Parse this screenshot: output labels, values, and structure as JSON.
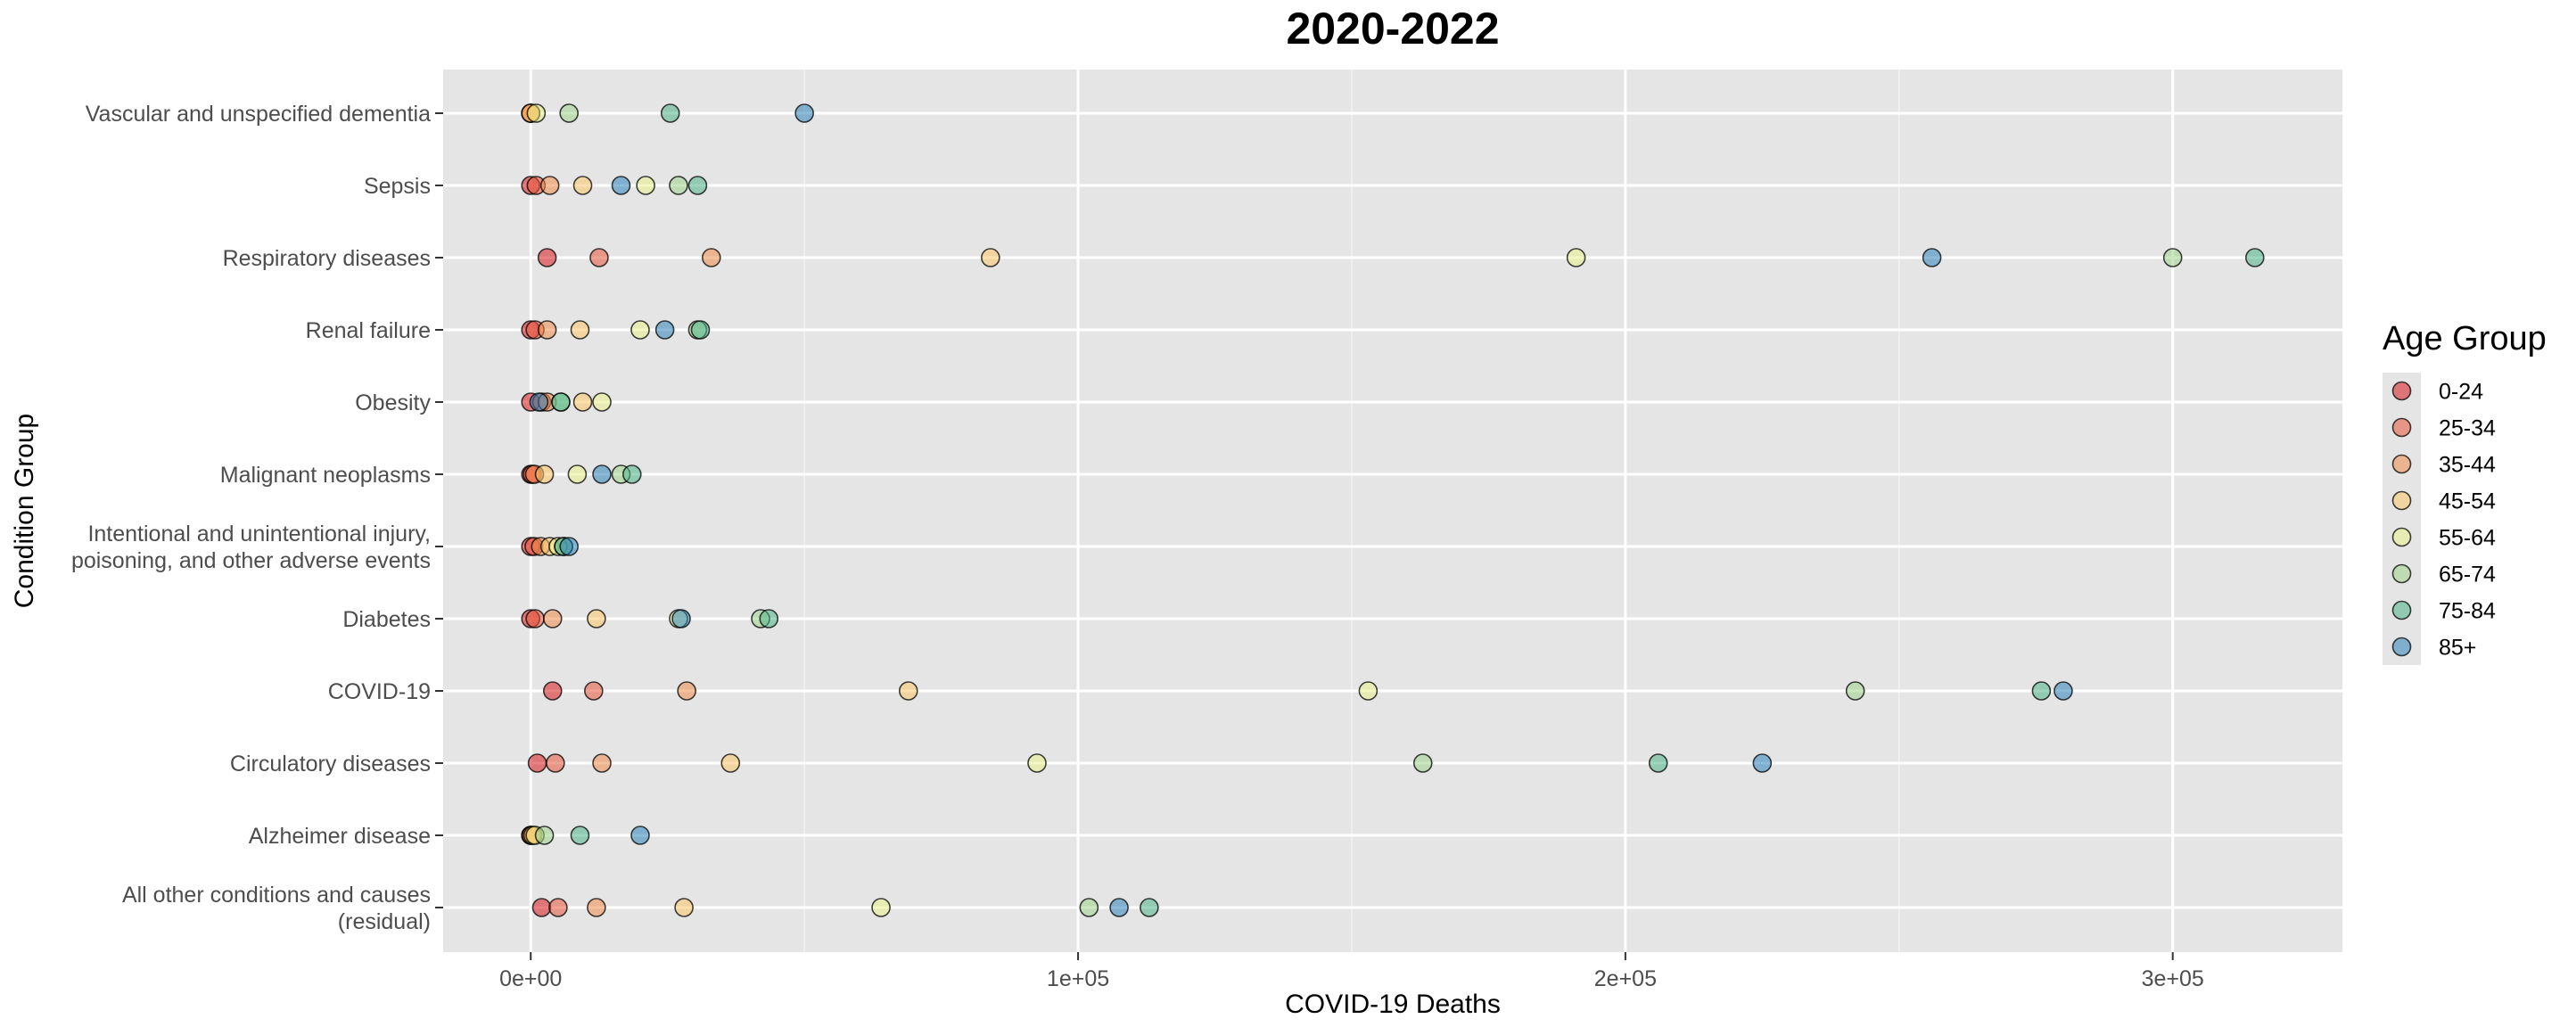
{
  "chart_data": {
    "type": "scatter",
    "title": "2020-2022",
    "xlabel": "COVID-19 Deaths",
    "ylabel": "Condition Group",
    "xlim": [
      -16000,
      331000
    ],
    "x_ticks": [
      0,
      100000,
      200000,
      300000
    ],
    "x_tick_labels": [
      "0e+00",
      "1e+05",
      "2e+05",
      "3e+05"
    ],
    "grid": true,
    "legend_title": "Age Group",
    "legend_position": "right",
    "categories": [
      [
        "Vascular and unspecified dementia"
      ],
      [
        "Sepsis"
      ],
      [
        "Respiratory diseases"
      ],
      [
        "Renal failure"
      ],
      [
        "Obesity"
      ],
      [
        "Malignant neoplasms"
      ],
      [
        "Intentional and unintentional injury,",
        "poisoning, and other adverse events"
      ],
      [
        "Diabetes"
      ],
      [
        "COVID-19"
      ],
      [
        "Circulatory diseases"
      ],
      [
        "Alzheimer disease"
      ],
      [
        "All other conditions and causes",
        "(residual)"
      ]
    ],
    "series": [
      {
        "name": "0-24",
        "color": "#d7191c",
        "values": [
          0,
          0,
          3000,
          0,
          0,
          0,
          0,
          0,
          4000,
          1200,
          0,
          2000
        ]
      },
      {
        "name": "25-34",
        "color": "#e8553a",
        "values": [
          0,
          1000,
          12500,
          800,
          2000,
          300,
          600,
          800,
          11500,
          4500,
          0,
          5000
        ]
      },
      {
        "name": "35-44",
        "color": "#f08c4a",
        "values": [
          0,
          3500,
          33000,
          3000,
          3000,
          700,
          1800,
          4000,
          28500,
          13000,
          100,
          12000
        ]
      },
      {
        "name": "45-54",
        "color": "#fbc766",
        "values": [
          0,
          9500,
          84000,
          9000,
          9500,
          2500,
          3500,
          12000,
          69000,
          36500,
          400,
          28000
        ]
      },
      {
        "name": "55-64",
        "color": "#e9f28c",
        "values": [
          1000,
          21000,
          191000,
          20000,
          13000,
          8500,
          5000,
          27000,
          153000,
          92500,
          800,
          64000
        ]
      },
      {
        "name": "65-74",
        "color": "#9fd48c",
        "values": [
          7000,
          27000,
          300000,
          30500,
          5500,
          16500,
          6000,
          42000,
          242000,
          163000,
          2500,
          102000
        ]
      },
      {
        "name": "75-84",
        "color": "#4fb389",
        "values": [
          25500,
          30500,
          315000,
          31000,
          5500,
          18500,
          6000,
          43500,
          276000,
          206000,
          9000,
          113000
        ]
      },
      {
        "name": "85+",
        "color": "#2b83ba",
        "values": [
          50000,
          16500,
          256000,
          24500,
          1500,
          13000,
          7000,
          27500,
          280000,
          225000,
          20000,
          107500
        ]
      }
    ]
  }
}
